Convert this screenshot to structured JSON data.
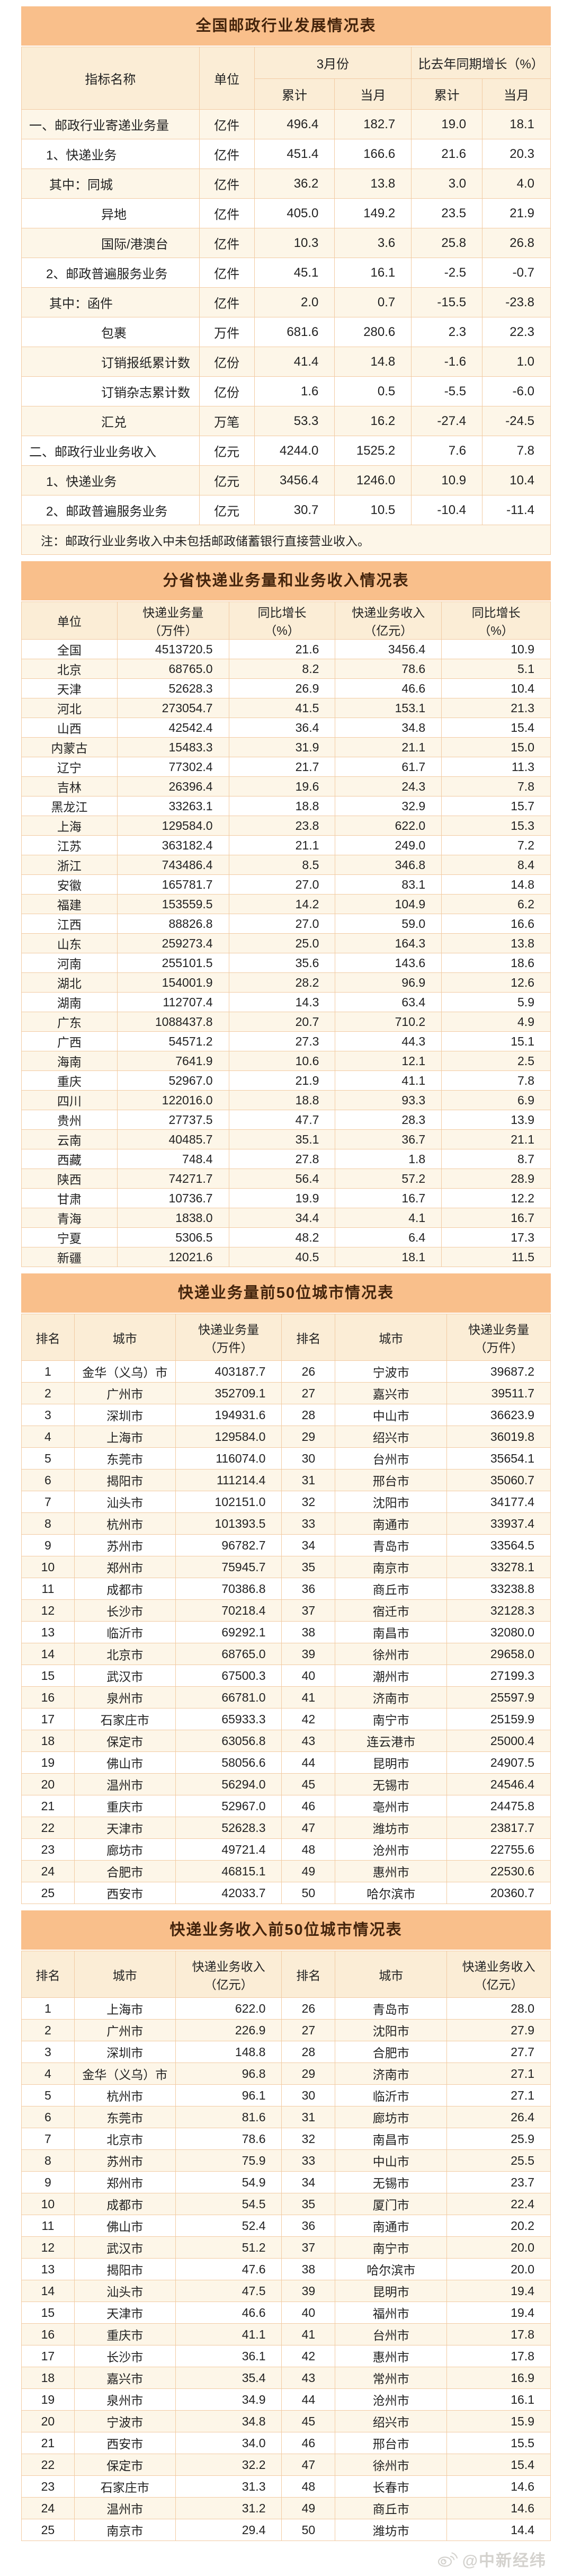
{
  "colors": {
    "title_bar_bg": "#F9BF8B",
    "title_text": "#44240C",
    "header_bg": "#FBEDD6",
    "row_cream": "#FDF6E8",
    "row_white": "#FFFFFF",
    "border": "#F2CBA3",
    "watermark": "#D4D2CE"
  },
  "table1": {
    "title": "全国邮政行业发展情况表",
    "header": {
      "indicator": "指标名称",
      "unit": "单位",
      "group_march": "3月份",
      "group_growth": "比去年同期增长（%）",
      "sub_cum": "累计",
      "sub_month": "当月"
    },
    "rows": [
      {
        "label": "一、邮政行业寄递业务量",
        "indent": 0,
        "unit": "亿件",
        "values": [
          "496.4",
          "182.7",
          "19.0",
          "18.1"
        ]
      },
      {
        "label": "1、快递业务",
        "indent": 1,
        "unit": "亿件",
        "values": [
          "451.4",
          "166.6",
          "21.6",
          "20.3"
        ]
      },
      {
        "label": "其中：同城",
        "indent": 2,
        "unit": "亿件",
        "values": [
          "36.2",
          "13.8",
          "3.0",
          "4.0"
        ]
      },
      {
        "label": "异地",
        "indent": 3,
        "unit": "亿件",
        "values": [
          "405.0",
          "149.2",
          "23.5",
          "21.9"
        ]
      },
      {
        "label": "国际/港澳台",
        "indent": 3,
        "unit": "亿件",
        "values": [
          "10.3",
          "3.6",
          "25.8",
          "26.8"
        ]
      },
      {
        "label": "2、邮政普遍服务业务",
        "indent": 1,
        "unit": "亿件",
        "values": [
          "45.1",
          "16.1",
          "-2.5",
          "-0.7"
        ]
      },
      {
        "label": "其中：函件",
        "indent": 2,
        "unit": "亿件",
        "values": [
          "2.0",
          "0.7",
          "-15.5",
          "-23.8"
        ]
      },
      {
        "label": "包裹",
        "indent": 3,
        "unit": "万件",
        "values": [
          "681.6",
          "280.6",
          "2.3",
          "22.3"
        ]
      },
      {
        "label": "订销报纸累计数",
        "indent": 3,
        "unit": "亿份",
        "values": [
          "41.4",
          "14.8",
          "-1.6",
          "1.0"
        ]
      },
      {
        "label": "订销杂志累计数",
        "indent": 3,
        "unit": "亿份",
        "values": [
          "1.6",
          "0.5",
          "-5.5",
          "-6.0"
        ]
      },
      {
        "label": "汇兑",
        "indent": 3,
        "unit": "万笔",
        "values": [
          "53.3",
          "16.2",
          "-27.4",
          "-24.5"
        ]
      },
      {
        "label": "二、邮政行业业务收入",
        "indent": 0,
        "unit": "亿元",
        "values": [
          "4244.0",
          "1525.2",
          "7.6",
          "7.8"
        ]
      },
      {
        "label": "1、快递业务",
        "indent": 1,
        "unit": "亿元",
        "values": [
          "3456.4",
          "1246.0",
          "10.9",
          "10.4"
        ]
      },
      {
        "label": "2、邮政普遍服务业务",
        "indent": 1,
        "unit": "亿元",
        "values": [
          "30.7",
          "10.5",
          "-10.4",
          "-11.4"
        ]
      }
    ],
    "note": "注：邮政行业业务收入中未包括邮政储蓄银行直接营业收入。"
  },
  "table2": {
    "title": "分省快递业务量和业务收入情况表",
    "header": [
      "单位",
      "快递业务量\n（万件）",
      "同比增长\n（%）",
      "快递业务收入\n（亿元）",
      "同比增长\n（%）"
    ],
    "rows": [
      [
        "全国",
        "4513720.5",
        "21.6",
        "3456.4",
        "10.9"
      ],
      [
        "北京",
        "68765.0",
        "8.2",
        "78.6",
        "5.1"
      ],
      [
        "天津",
        "52628.3",
        "26.9",
        "46.6",
        "10.4"
      ],
      [
        "河北",
        "273054.7",
        "41.5",
        "153.1",
        "21.3"
      ],
      [
        "山西",
        "42542.4",
        "36.4",
        "34.8",
        "15.4"
      ],
      [
        "内蒙古",
        "15483.3",
        "31.9",
        "21.1",
        "15.0"
      ],
      [
        "辽宁",
        "77302.4",
        "21.7",
        "61.7",
        "11.3"
      ],
      [
        "吉林",
        "26396.4",
        "19.6",
        "24.3",
        "7.8"
      ],
      [
        "黑龙江",
        "33263.1",
        "18.8",
        "32.9",
        "15.7"
      ],
      [
        "上海",
        "129584.0",
        "23.8",
        "622.0",
        "15.3"
      ],
      [
        "江苏",
        "363182.4",
        "21.1",
        "249.0",
        "7.2"
      ],
      [
        "浙江",
        "743486.4",
        "8.5",
        "346.8",
        "8.4"
      ],
      [
        "安徽",
        "165781.7",
        "27.0",
        "83.1",
        "14.8"
      ],
      [
        "福建",
        "153559.5",
        "14.2",
        "104.9",
        "6.2"
      ],
      [
        "江西",
        "88826.8",
        "27.0",
        "59.0",
        "16.6"
      ],
      [
        "山东",
        "259273.4",
        "25.0",
        "164.3",
        "13.8"
      ],
      [
        "河南",
        "255101.5",
        "35.6",
        "143.6",
        "18.6"
      ],
      [
        "湖北",
        "154001.9",
        "28.2",
        "96.9",
        "12.6"
      ],
      [
        "湖南",
        "112707.4",
        "14.3",
        "63.4",
        "5.9"
      ],
      [
        "广东",
        "1088437.8",
        "20.7",
        "710.2",
        "4.9"
      ],
      [
        "广西",
        "54571.2",
        "27.3",
        "44.3",
        "15.1"
      ],
      [
        "海南",
        "7641.9",
        "10.6",
        "12.1",
        "2.5"
      ],
      [
        "重庆",
        "52967.0",
        "21.9",
        "41.1",
        "7.8"
      ],
      [
        "四川",
        "122016.0",
        "18.8",
        "93.3",
        "6.9"
      ],
      [
        "贵州",
        "27737.5",
        "47.7",
        "28.3",
        "13.9"
      ],
      [
        "云南",
        "40485.7",
        "35.1",
        "36.7",
        "21.1"
      ],
      [
        "西藏",
        "748.4",
        "27.8",
        "1.8",
        "8.7"
      ],
      [
        "陕西",
        "74271.7",
        "56.4",
        "57.2",
        "28.9"
      ],
      [
        "甘肃",
        "10736.7",
        "19.9",
        "16.7",
        "12.2"
      ],
      [
        "青海",
        "1838.0",
        "34.4",
        "4.1",
        "16.7"
      ],
      [
        "宁夏",
        "5306.5",
        "48.2",
        "6.4",
        "17.3"
      ],
      [
        "新疆",
        "12021.6",
        "40.5",
        "18.1",
        "11.5"
      ]
    ]
  },
  "table3": {
    "title": "快递业务量前50位城市情况表",
    "header": [
      "排名",
      "城市",
      "快递业务量\n（万件）",
      "排名",
      "城市",
      "快递业务量\n（万件）"
    ],
    "rows": [
      [
        "1",
        "金华（义乌）市",
        "403187.7",
        "26",
        "宁波市",
        "39687.2"
      ],
      [
        "2",
        "广州市",
        "352709.1",
        "27",
        "嘉兴市",
        "39511.7"
      ],
      [
        "3",
        "深圳市",
        "194931.6",
        "28",
        "中山市",
        "36623.9"
      ],
      [
        "4",
        "上海市",
        "129584.0",
        "29",
        "绍兴市",
        "36019.8"
      ],
      [
        "5",
        "东莞市",
        "116074.0",
        "30",
        "台州市",
        "35654.1"
      ],
      [
        "6",
        "揭阳市",
        "111214.4",
        "31",
        "邢台市",
        "35060.7"
      ],
      [
        "7",
        "汕头市",
        "102151.0",
        "32",
        "沈阳市",
        "34177.4"
      ],
      [
        "8",
        "杭州市",
        "101393.5",
        "33",
        "南通市",
        "33937.4"
      ],
      [
        "9",
        "苏州市",
        "96782.7",
        "34",
        "青岛市",
        "33564.5"
      ],
      [
        "10",
        "郑州市",
        "75945.7",
        "35",
        "南京市",
        "33278.1"
      ],
      [
        "11",
        "成都市",
        "70386.8",
        "36",
        "商丘市",
        "33238.8"
      ],
      [
        "12",
        "长沙市",
        "70218.4",
        "37",
        "宿迁市",
        "32128.3"
      ],
      [
        "13",
        "临沂市",
        "69292.1",
        "38",
        "南昌市",
        "32080.0"
      ],
      [
        "14",
        "北京市",
        "68765.0",
        "39",
        "徐州市",
        "29658.0"
      ],
      [
        "15",
        "武汉市",
        "67500.3",
        "40",
        "潮州市",
        "27199.3"
      ],
      [
        "16",
        "泉州市",
        "66781.0",
        "41",
        "济南市",
        "25597.9"
      ],
      [
        "17",
        "石家庄市",
        "65933.3",
        "42",
        "南宁市",
        "25159.9"
      ],
      [
        "18",
        "保定市",
        "63056.8",
        "43",
        "连云港市",
        "25000.4"
      ],
      [
        "19",
        "佛山市",
        "58056.6",
        "44",
        "昆明市",
        "24907.5"
      ],
      [
        "20",
        "温州市",
        "56294.0",
        "45",
        "无锡市",
        "24546.4"
      ],
      [
        "21",
        "重庆市",
        "52967.0",
        "46",
        "亳州市",
        "24475.8"
      ],
      [
        "22",
        "天津市",
        "52628.3",
        "47",
        "潍坊市",
        "23817.7"
      ],
      [
        "23",
        "廊坊市",
        "49721.4",
        "48",
        "沧州市",
        "22755.6"
      ],
      [
        "24",
        "合肥市",
        "46815.1",
        "49",
        "惠州市",
        "22530.6"
      ],
      [
        "25",
        "西安市",
        "42033.7",
        "50",
        "哈尔滨市",
        "20360.7"
      ]
    ]
  },
  "table4": {
    "title": "快递业务收入前50位城市情况表",
    "header": [
      "排名",
      "城市",
      "快递业务收入\n（亿元）",
      "排名",
      "城市",
      "快递业务收入\n（亿元）"
    ],
    "rows": [
      [
        "1",
        "上海市",
        "622.0",
        "26",
        "青岛市",
        "28.0"
      ],
      [
        "2",
        "广州市",
        "226.9",
        "27",
        "沈阳市",
        "27.9"
      ],
      [
        "3",
        "深圳市",
        "148.8",
        "28",
        "合肥市",
        "27.7"
      ],
      [
        "4",
        "金华（义乌）市",
        "96.8",
        "29",
        "济南市",
        "27.1"
      ],
      [
        "5",
        "杭州市",
        "96.1",
        "30",
        "临沂市",
        "27.1"
      ],
      [
        "6",
        "东莞市",
        "81.6",
        "31",
        "廊坊市",
        "26.4"
      ],
      [
        "7",
        "北京市",
        "78.6",
        "32",
        "南昌市",
        "25.9"
      ],
      [
        "8",
        "苏州市",
        "75.9",
        "33",
        "中山市",
        "25.5"
      ],
      [
        "9",
        "郑州市",
        "54.9",
        "34",
        "无锡市",
        "23.7"
      ],
      [
        "10",
        "成都市",
        "54.5",
        "35",
        "厦门市",
        "22.4"
      ],
      [
        "11",
        "佛山市",
        "52.4",
        "36",
        "南通市",
        "20.2"
      ],
      [
        "12",
        "武汉市",
        "51.2",
        "37",
        "南宁市",
        "20.0"
      ],
      [
        "13",
        "揭阳市",
        "47.6",
        "38",
        "哈尔滨市",
        "20.0"
      ],
      [
        "14",
        "汕头市",
        "47.5",
        "39",
        "昆明市",
        "19.4"
      ],
      [
        "15",
        "天津市",
        "46.6",
        "40",
        "福州市",
        "19.4"
      ],
      [
        "16",
        "重庆市",
        "41.1",
        "41",
        "台州市",
        "17.8"
      ],
      [
        "17",
        "长沙市",
        "36.1",
        "42",
        "惠州市",
        "17.8"
      ],
      [
        "18",
        "嘉兴市",
        "35.4",
        "43",
        "常州市",
        "16.9"
      ],
      [
        "19",
        "泉州市",
        "34.9",
        "44",
        "沧州市",
        "16.1"
      ],
      [
        "20",
        "宁波市",
        "34.8",
        "45",
        "绍兴市",
        "15.9"
      ],
      [
        "21",
        "西安市",
        "34.0",
        "46",
        "邢台市",
        "15.5"
      ],
      [
        "22",
        "保定市",
        "32.2",
        "47",
        "徐州市",
        "15.4"
      ],
      [
        "23",
        "石家庄市",
        "31.3",
        "48",
        "长春市",
        "14.6"
      ],
      [
        "24",
        "温州市",
        "31.2",
        "49",
        "商丘市",
        "14.6"
      ],
      [
        "25",
        "南京市",
        "29.4",
        "50",
        "潍坊市",
        "14.4"
      ]
    ]
  },
  "watermark": {
    "text": "@中新经纬"
  }
}
